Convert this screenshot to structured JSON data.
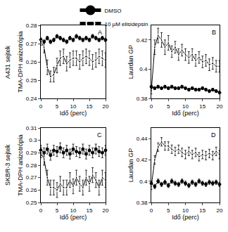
{
  "chart_data": [
    {
      "type": "line",
      "title": "A",
      "row_label": "A431 sejtek",
      "legend": "top",
      "x_label": "Idő (perc)",
      "y_label": "TMA-DPH anizotrópia",
      "x": [
        0,
        1,
        2,
        3,
        4,
        5,
        6,
        7,
        8,
        9,
        10,
        11,
        12,
        13,
        14,
        15,
        16,
        17,
        18,
        19,
        20
      ],
      "xlim": [
        0,
        20
      ],
      "xticks": [
        0,
        5,
        10,
        15,
        20
      ],
      "ylim": [
        0.24,
        0.28
      ],
      "yticks": [
        0.24,
        0.25,
        0.26,
        0.27,
        0.28
      ],
      "series": [
        {
          "name": "DMSO",
          "color": "#000000",
          "marker": "circle",
          "values": [
            0.272,
            0.271,
            0.273,
            0.271,
            0.272,
            0.274,
            0.273,
            0.272,
            0.271,
            0.273,
            0.272,
            0.274,
            0.273,
            0.272,
            0.273,
            0.272,
            0.274,
            0.273,
            0.272,
            0.273,
            0.272
          ],
          "errors": [
            0.001,
            0.001,
            0.001,
            0.001,
            0.001,
            0.001,
            0.001,
            0.001,
            0.001,
            0.001,
            0.001,
            0.001,
            0.001,
            0.001,
            0.001,
            0.001,
            0.001,
            0.001,
            0.001,
            0.001,
            0.001
          ]
        },
        {
          "name": "10 µM elisidepsin",
          "color": "#000000",
          "marker": "circle-open",
          "values": [
            0.271,
            0.268,
            0.257,
            0.252,
            0.253,
            0.258,
            0.262,
            0.263,
            0.259,
            0.261,
            0.262,
            0.262,
            0.26,
            0.262,
            0.263,
            0.262,
            0.26,
            0.261,
            0.263,
            0.262,
            0.261
          ],
          "errors": [
            0.002,
            0.003,
            0.004,
            0.003,
            0.004,
            0.004,
            0.004,
            0.004,
            0.004,
            0.004,
            0.004,
            0.004,
            0.004,
            0.004,
            0.004,
            0.004,
            0.004,
            0.004,
            0.004,
            0.004,
            0.004
          ]
        }
      ]
    },
    {
      "type": "line",
      "title": "B",
      "x_label": "Idő (perc)",
      "y_label": "Laurdan GP",
      "x": [
        0,
        1,
        2,
        3,
        4,
        5,
        6,
        7,
        8,
        9,
        10,
        11,
        12,
        13,
        14,
        15,
        16,
        17,
        18,
        19,
        20
      ],
      "xlim": [
        0,
        20
      ],
      "xticks": [
        0,
        5,
        10,
        15,
        20
      ],
      "ylim": [
        0.38,
        0.43
      ],
      "yticks": [
        0.38,
        0.4,
        0.42
      ],
      "series": [
        {
          "name": "DMSO",
          "color": "#000000",
          "marker": "circle",
          "values": [
            0.388,
            0.387,
            0.388,
            0.387,
            0.388,
            0.387,
            0.388,
            0.387,
            0.387,
            0.388,
            0.387,
            0.386,
            0.387,
            0.386,
            0.386,
            0.387,
            0.386,
            0.385,
            0.386,
            0.385,
            0.384
          ],
          "errors": [
            0.001,
            0.001,
            0.001,
            0.001,
            0.001,
            0.001,
            0.001,
            0.001,
            0.001,
            0.001,
            0.001,
            0.001,
            0.001,
            0.001,
            0.001,
            0.001,
            0.001,
            0.001,
            0.001,
            0.001,
            0.001
          ]
        },
        {
          "name": "10 µM elisidepsin",
          "color": "#000000",
          "marker": "circle-open",
          "values": [
            0.385,
            0.415,
            0.423,
            0.42,
            0.415,
            0.418,
            0.412,
            0.415,
            0.41,
            0.413,
            0.41,
            0.408,
            0.41,
            0.406,
            0.408,
            0.405,
            0.406,
            0.403,
            0.404,
            0.402,
            0.402
          ],
          "errors": [
            0.002,
            0.005,
            0.005,
            0.005,
            0.005,
            0.005,
            0.004,
            0.004,
            0.004,
            0.004,
            0.004,
            0.004,
            0.004,
            0.004,
            0.004,
            0.004,
            0.004,
            0.004,
            0.004,
            0.004,
            0.004
          ]
        }
      ]
    },
    {
      "type": "line",
      "title": "C",
      "row_label": "SKBR-3 sejtek",
      "x_label": "Idő (perc)",
      "y_label": "TMA-DPH anizotrópia",
      "x": [
        0,
        1,
        2,
        3,
        4,
        5,
        6,
        7,
        8,
        9,
        10,
        11,
        12,
        13,
        14,
        15,
        16,
        17,
        18,
        19,
        20
      ],
      "xlim": [
        0,
        20
      ],
      "xticks": [
        0,
        5,
        10,
        15,
        20
      ],
      "ylim": [
        0.25,
        0.31
      ],
      "yticks": [
        0.25,
        0.26,
        0.27,
        0.28,
        0.29,
        0.3,
        0.31
      ],
      "series": [
        {
          "name": "DMSO",
          "color": "#000000",
          "marker": "circle",
          "values": [
            0.292,
            0.29,
            0.293,
            0.288,
            0.292,
            0.291,
            0.294,
            0.29,
            0.292,
            0.289,
            0.293,
            0.291,
            0.29,
            0.293,
            0.289,
            0.292,
            0.29,
            0.293,
            0.291,
            0.29,
            0.292
          ],
          "errors": [
            0.004,
            0.004,
            0.004,
            0.004,
            0.004,
            0.004,
            0.004,
            0.004,
            0.004,
            0.004,
            0.004,
            0.004,
            0.004,
            0.004,
            0.004,
            0.004,
            0.004,
            0.004,
            0.004,
            0.004,
            0.004
          ]
        },
        {
          "name": "10 µM elisidepsin",
          "color": "#000000",
          "marker": "circle-open",
          "values": [
            0.29,
            0.285,
            0.27,
            0.262,
            0.262,
            0.26,
            0.265,
            0.262,
            0.262,
            0.268,
            0.263,
            0.27,
            0.265,
            0.262,
            0.27,
            0.265,
            0.272,
            0.268,
            0.262,
            0.27,
            0.268
          ],
          "errors": [
            0.004,
            0.005,
            0.006,
            0.006,
            0.006,
            0.006,
            0.006,
            0.006,
            0.006,
            0.006,
            0.006,
            0.006,
            0.006,
            0.006,
            0.006,
            0.006,
            0.006,
            0.006,
            0.006,
            0.006,
            0.006
          ]
        }
      ]
    },
    {
      "type": "line",
      "title": "D",
      "x_label": "Idő (perc)",
      "y_label": "Laurdan GP",
      "x": [
        0,
        1,
        2,
        3,
        4,
        5,
        6,
        7,
        8,
        9,
        10,
        11,
        12,
        13,
        14,
        15,
        16,
        17,
        18,
        19,
        20
      ],
      "xlim": [
        0,
        20
      ],
      "xticks": [
        0,
        5,
        10,
        15,
        20
      ],
      "ylim": [
        0.38,
        0.45
      ],
      "yticks": [
        0.38,
        0.4,
        0.42,
        0.44
      ],
      "series": [
        {
          "name": "DMSO",
          "color": "#000000",
          "marker": "circle",
          "values": [
            0.398,
            0.395,
            0.4,
            0.397,
            0.399,
            0.396,
            0.4,
            0.398,
            0.397,
            0.4,
            0.398,
            0.396,
            0.399,
            0.397,
            0.4,
            0.398,
            0.397,
            0.399,
            0.398,
            0.399,
            0.397
          ],
          "errors": [
            0.002,
            0.002,
            0.002,
            0.002,
            0.002,
            0.002,
            0.002,
            0.002,
            0.002,
            0.002,
            0.002,
            0.002,
            0.002,
            0.002,
            0.002,
            0.002,
            0.002,
            0.002,
            0.002,
            0.002,
            0.002
          ]
        },
        {
          "name": "10 µM elisidepsin",
          "color": "#000000",
          "marker": "circle-open",
          "values": [
            0.395,
            0.42,
            0.432,
            0.437,
            0.433,
            0.433,
            0.43,
            0.428,
            0.43,
            0.427,
            0.425,
            0.428,
            0.425,
            0.427,
            0.423,
            0.425,
            0.424,
            0.426,
            0.424,
            0.428,
            0.425
          ],
          "errors": [
            0.003,
            0.004,
            0.004,
            0.004,
            0.004,
            0.004,
            0.004,
            0.004,
            0.004,
            0.004,
            0.004,
            0.004,
            0.004,
            0.004,
            0.004,
            0.004,
            0.004,
            0.004,
            0.004,
            0.004,
            0.004
          ]
        }
      ]
    }
  ]
}
